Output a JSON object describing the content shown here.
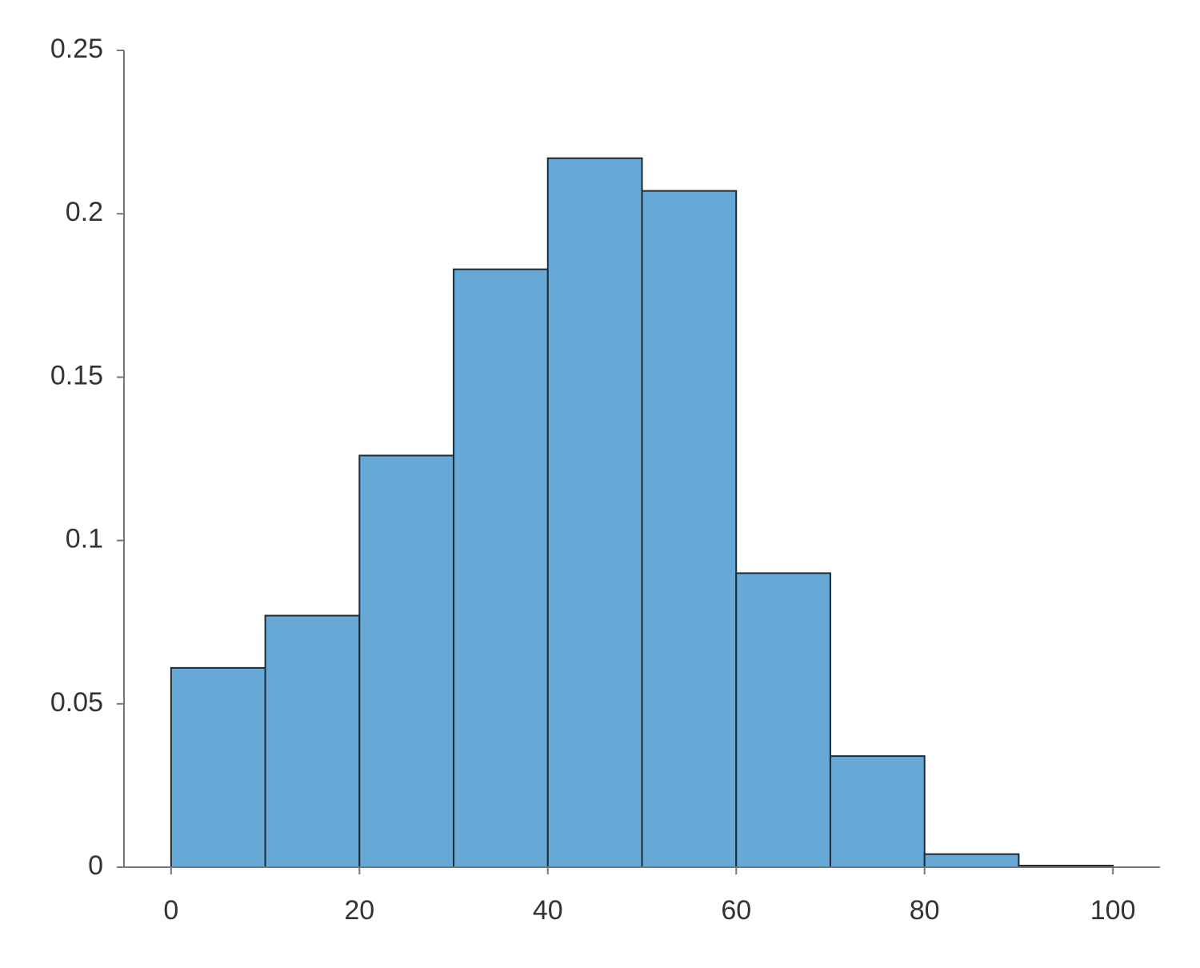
{
  "chart_data": {
    "type": "histogram",
    "bins": [
      0,
      10,
      20,
      30,
      40,
      50,
      60,
      70,
      80,
      90,
      100
    ],
    "values": [
      0.061,
      0.077,
      0.126,
      0.183,
      0.217,
      0.207,
      0.09,
      0.034,
      0.004,
      0.0005
    ],
    "color": "#67a9d6",
    "xlim": [
      -5,
      105
    ],
    "xticks": [
      0,
      20,
      40,
      60,
      80,
      100
    ],
    "ylim": [
      0,
      0.25
    ],
    "yticks": [
      0,
      0.05,
      0.1,
      0.15,
      0.2,
      0.25
    ],
    "grid": false
  }
}
